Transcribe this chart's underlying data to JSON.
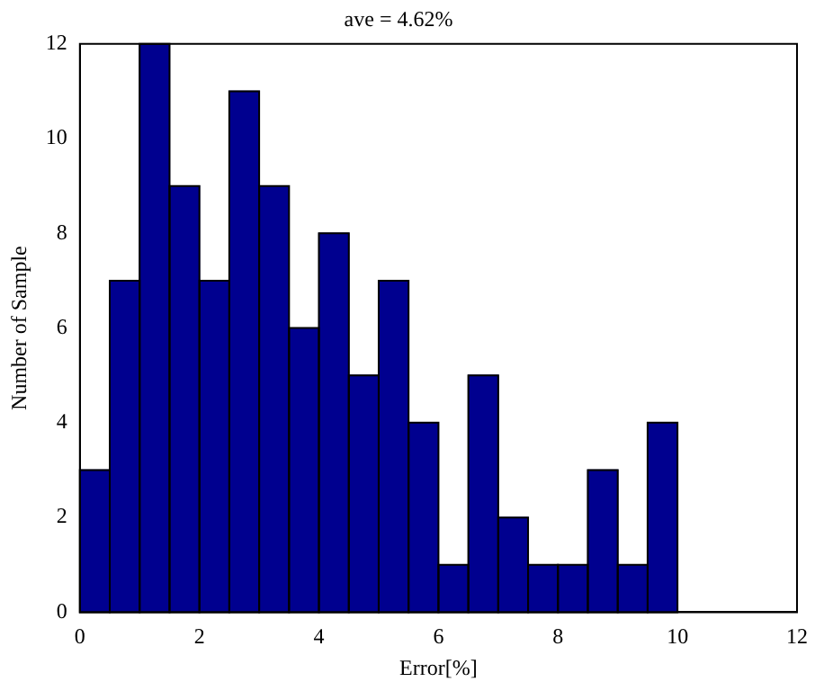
{
  "chart_data": {
    "type": "histogram",
    "title": "ave = 4.62%",
    "xlabel": "Error[%]",
    "ylabel": "Number of Sample",
    "bins": [
      0,
      0.5,
      1,
      1.5,
      2,
      2.5,
      3,
      3.5,
      4,
      4.5,
      5,
      5.5,
      6,
      6.5,
      7,
      7.5,
      8,
      8.5,
      9,
      9.5,
      10
    ],
    "values": [
      3,
      7,
      12,
      9,
      7,
      11,
      9,
      6,
      8,
      5,
      7,
      4,
      1,
      5,
      2,
      1,
      1,
      3,
      1,
      4
    ],
    "color": "#00008f",
    "xlim": [
      0,
      12
    ],
    "xticks": [
      0,
      2,
      4,
      6,
      8,
      10,
      12
    ],
    "ylim": [
      0,
      12
    ],
    "yticks": [
      0,
      2,
      4,
      6,
      8,
      10,
      12
    ],
    "grid": false,
    "legend": false
  }
}
